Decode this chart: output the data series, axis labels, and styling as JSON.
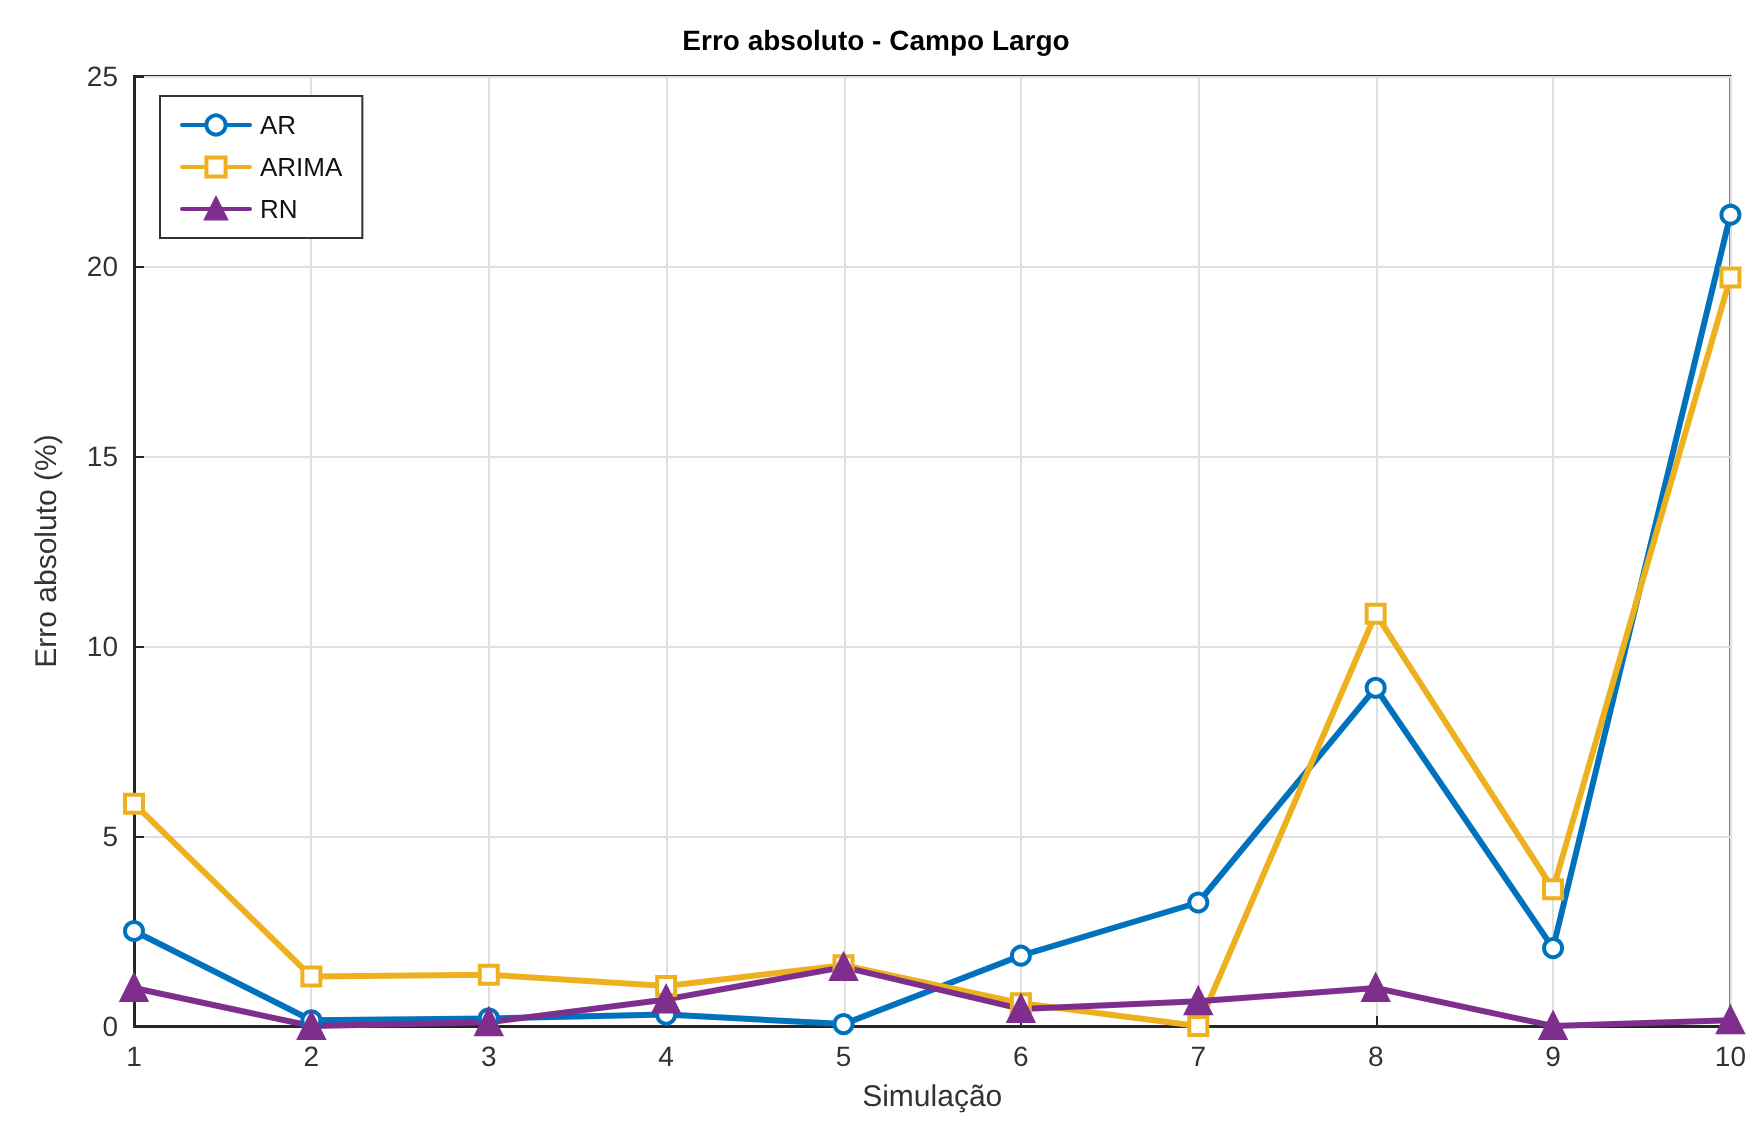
{
  "chart_data": {
    "type": "line",
    "title": "Erro absoluto - Campo Largo",
    "xlabel": "Simulação",
    "ylabel": "Erro absoluto (%)",
    "x": [
      1,
      2,
      3,
      4,
      5,
      6,
      7,
      8,
      9,
      10
    ],
    "series": [
      {
        "name": "AR",
        "color": "#0072bd",
        "marker": "circle",
        "values": [
          2.5,
          0.15,
          0.2,
          0.3,
          0.05,
          1.85,
          3.25,
          8.9,
          2.05,
          21.35
        ]
      },
      {
        "name": "ARIMA",
        "color": "#edb120",
        "marker": "square",
        "values": [
          5.85,
          1.3,
          1.35,
          1.05,
          1.6,
          0.6,
          0.0,
          10.85,
          3.6,
          19.7
        ]
      },
      {
        "name": "RN",
        "color": "#7e2f8e",
        "marker": "triangle",
        "values": [
          1.0,
          0.0,
          0.1,
          0.7,
          1.55,
          0.45,
          0.65,
          1.0,
          0.0,
          0.15
        ]
      }
    ],
    "xlim": [
      1,
      10
    ],
    "xticks": [
      1,
      2,
      3,
      4,
      5,
      6,
      7,
      8,
      9,
      10
    ],
    "ylim": [
      0,
      25
    ],
    "yticks": [
      0,
      5,
      10,
      15,
      20,
      25
    ],
    "grid": true,
    "legend": "top left",
    "line_style": "solid"
  }
}
